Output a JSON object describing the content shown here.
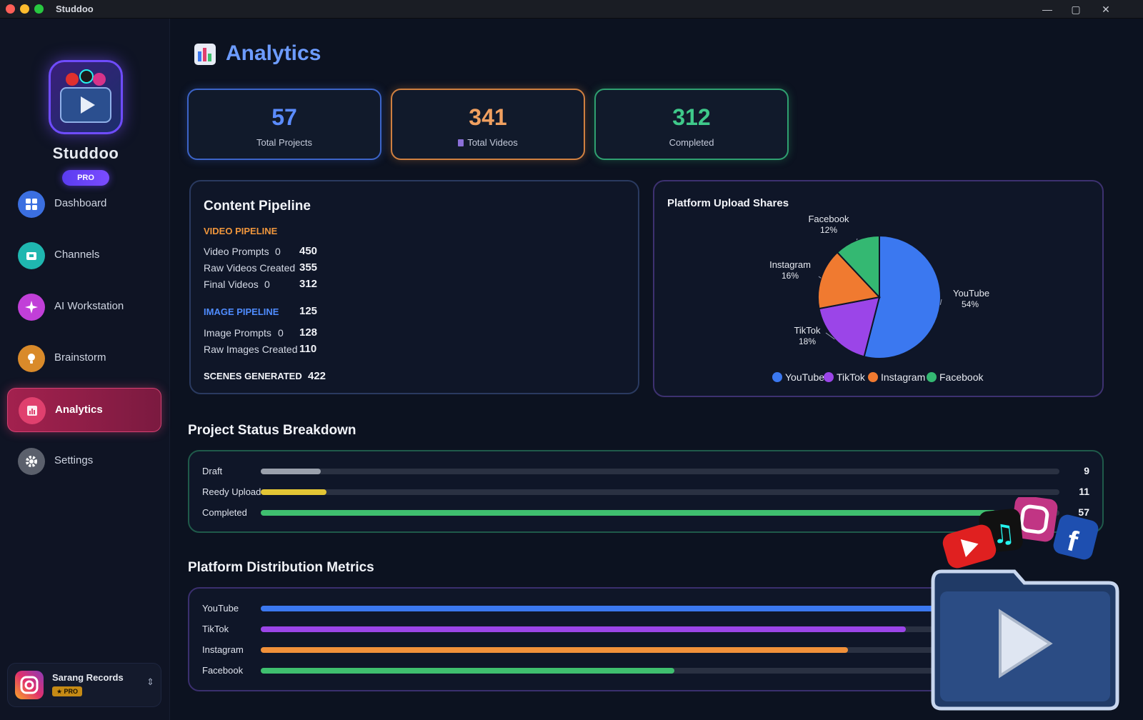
{
  "window": {
    "title": "Studdoo"
  },
  "brand": {
    "name": "Studdoo",
    "badge": "PRO"
  },
  "nav": [
    {
      "label": "Dashboard",
      "icon": "dashboard-icon",
      "color": "#3b6fe0"
    },
    {
      "label": "Channels",
      "icon": "channels-icon",
      "color": "#1fb7b0"
    },
    {
      "label": "AI Workstation",
      "icon": "sparkle-icon",
      "color": "#c13fd8"
    },
    {
      "label": "Brainstorm",
      "icon": "lightbulb-icon",
      "color": "#d98a2a"
    },
    {
      "label": "Analytics",
      "icon": "analytics-icon",
      "color": "#e0406e",
      "active": true
    },
    {
      "label": "Settings",
      "icon": "gear-icon",
      "color": "#8a8f9c"
    }
  ],
  "account": {
    "name": "Sarang Records",
    "badge": "★ PRO"
  },
  "page": {
    "title": "Analytics"
  },
  "stats": [
    {
      "value": "57",
      "label": "Total Projects",
      "color": "#5b8cff",
      "border": "#3c64c8"
    },
    {
      "value": "341",
      "label": "Total Videos",
      "color": "#f0a060",
      "border": "#d08040"
    },
    {
      "value": "312",
      "label": "Completed",
      "color": "#3fc98a",
      "border": "#2fa070"
    }
  ],
  "pipeline": {
    "title": "Content Pipeline",
    "video_heading": "VIDEO PIPELINE",
    "video_rows": [
      {
        "label": "Video Prompts",
        "zero": "0",
        "value": "450"
      },
      {
        "label": "Raw Videos Created",
        "zero": "",
        "value": "355"
      },
      {
        "label": "Final Videos",
        "zero": "0",
        "value": "312"
      }
    ],
    "image_heading": "IMAGE PIPELINE",
    "image_total": "125",
    "image_rows": [
      {
        "label": "Image Prompts",
        "zero": "0",
        "value": "128"
      },
      {
        "label": "Raw Images Created",
        "zero": "",
        "value": "110"
      }
    ],
    "scenes_label": "SCENES GENERATED",
    "scenes_value": "422"
  },
  "share": {
    "title": "Platform Upload Shares",
    "legend": [
      "YouTube",
      "TikTok",
      "Instagram",
      "Facebook"
    ]
  },
  "chart_data": {
    "type": "pie",
    "title": "Platform Upload Shares",
    "categories": [
      "YouTube",
      "TikTok",
      "Instagram",
      "Facebook"
    ],
    "values": [
      54,
      18,
      16,
      12
    ],
    "labels": [
      "54%",
      "18%",
      "16%",
      "12%"
    ],
    "colors": [
      "#3b78f0",
      "#9b45e8",
      "#f07a30",
      "#34b872"
    ],
    "legend": "bottom"
  },
  "status": {
    "title": "Project Status Breakdown",
    "rows": [
      {
        "label": "Draft",
        "value": "9",
        "fraction": 0.075,
        "color": "#9aa0ac"
      },
      {
        "label": "Reedy Upload",
        "value": "11",
        "fraction": 0.082,
        "color": "#e3c535"
      },
      {
        "label": "Completed",
        "value": "57",
        "fraction": 0.92,
        "color": "#3fbf6f"
      }
    ]
  },
  "distribution": {
    "title": "Platform Distribution Metrics",
    "rows": [
      {
        "label": "YouTube",
        "fraction": 0.93,
        "color": "#3b78f0"
      },
      {
        "label": "TikTok",
        "fraction": 0.78,
        "color": "#9b45e8"
      },
      {
        "label": "Instagram",
        "fraction": 0.71,
        "color": "#f0903a"
      },
      {
        "label": "Facebook",
        "fraction": 0.5,
        "color": "#3fbf6f"
      }
    ]
  }
}
